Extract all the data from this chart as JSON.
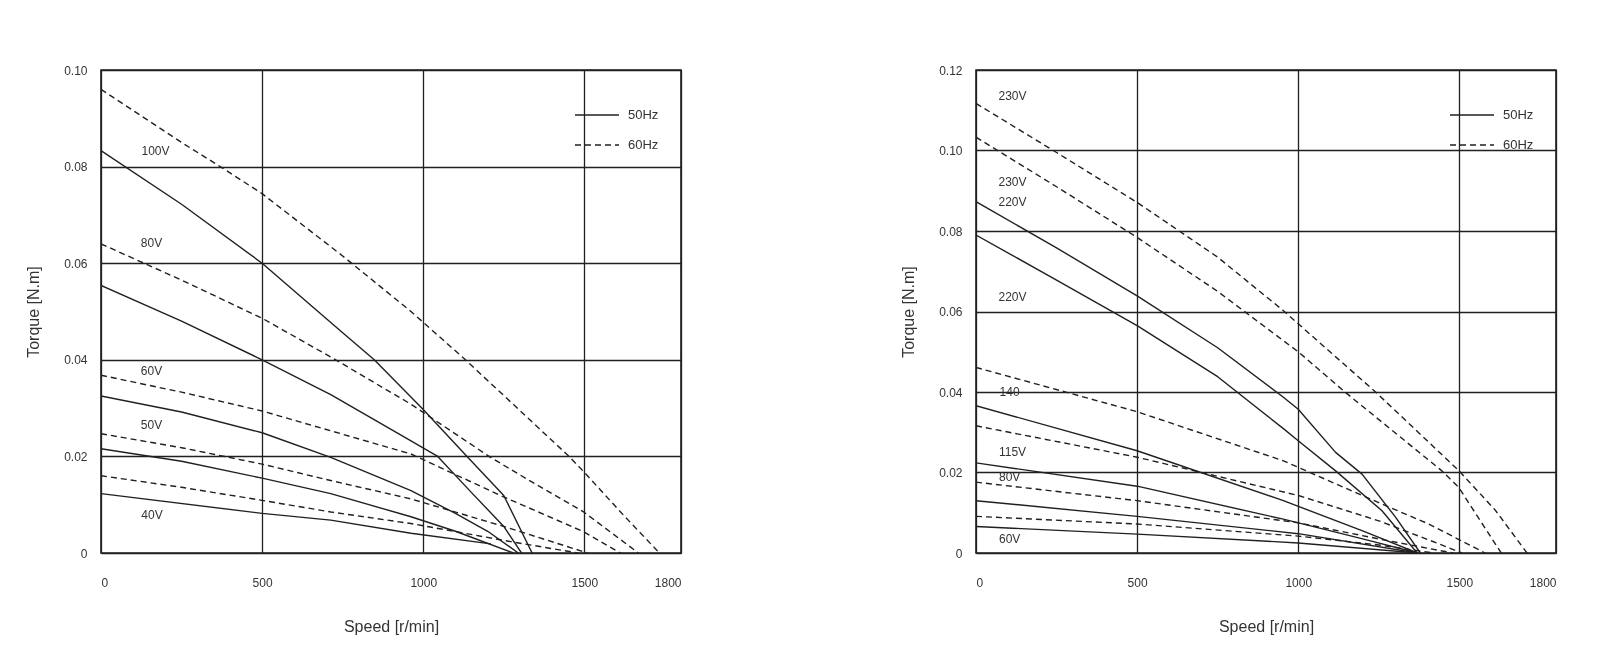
{
  "chart_data": [
    {
      "type": "line",
      "xlabel": "Speed [r/min]",
      "ylabel": "Torque [N.m]",
      "xlim": [
        0,
        1800
      ],
      "xticks": [
        0,
        500,
        1000,
        1500,
        1800
      ],
      "ylim": [
        0,
        0.1
      ],
      "yticks": [
        0,
        0.02,
        0.04,
        0.06,
        0.08,
        {
          "value": 0.1,
          "label": "0.10"
        }
      ],
      "grid": true,
      "legend": "top right",
      "series": [
        {
          "name": "50Hz",
          "color": "#231f20",
          "line_style": "solid",
          "x": [
            0,
            250,
            500,
            750,
            848,
            1000,
            1136,
            1250,
            1338
          ],
          "values": [
            0.0833,
            0.0722,
            0.06,
            0.0456,
            0.04,
            0.0297,
            0.02,
            0.0119,
            0
          ]
        },
        {
          "color": "#231f20",
          "line_style": "solid",
          "x": [
            0,
            250,
            500,
            713,
            962,
            1045,
            1150,
            1250,
            1305
          ],
          "values": [
            0.0554,
            0.048,
            0.04,
            0.0328,
            0.0232,
            0.02,
            0.0125,
            0.0055,
            0
          ]
        },
        {
          "color": "#231f20",
          "line_style": "solid",
          "x": [
            0,
            250,
            500,
            713,
            962,
            1100,
            1200,
            1295
          ],
          "values": [
            0.0325,
            0.0292,
            0.0249,
            0.0198,
            0.0129,
            0.0082,
            0.0045,
            0
          ]
        },
        {
          "color": "#231f20",
          "line_style": "solid",
          "x": [
            0,
            250,
            500,
            713,
            962,
            1100,
            1280
          ],
          "values": [
            0.0216,
            0.019,
            0.0155,
            0.0123,
            0.0075,
            0.0045,
            0
          ]
        },
        {
          "color": "#231f20",
          "line_style": "solid",
          "x": [
            0,
            500,
            713,
            962,
            1210
          ],
          "values": [
            0.0123,
            0.0082,
            0.0068,
            0.0041,
            0.0019
          ]
        },
        {
          "name": "60Hz",
          "color": "#231f20",
          "line_style": "dashed",
          "x": [
            0,
            250,
            370,
            500,
            750,
            962,
            1126,
            1300,
            1451,
            1500,
            1622,
            1733
          ],
          "values": [
            0.096,
            0.085,
            0.08,
            0.0744,
            0.0615,
            0.05,
            0.0403,
            0.0295,
            0.0201,
            0.0167,
            0.0078,
            0
          ]
        },
        {
          "color": "#231f20",
          "line_style": "dashed",
          "x": [
            0,
            250,
            500,
            723,
            962,
            1209,
            1350,
            1498,
            1668
          ],
          "values": [
            0.064,
            0.0565,
            0.0486,
            0.0402,
            0.0308,
            0.0198,
            0.0142,
            0.0085,
            0
          ]
        },
        {
          "color": "#231f20",
          "line_style": "dashed",
          "x": [
            0,
            250,
            500,
            713,
            962,
            1240,
            1498,
            1612
          ],
          "values": [
            0.0368,
            0.0333,
            0.0294,
            0.0253,
            0.0205,
            0.0119,
            0.0044,
            0
          ]
        },
        {
          "color": "#231f20",
          "line_style": "dashed",
          "x": [
            0,
            250,
            500,
            713,
            962,
            1250,
            1510
          ],
          "values": [
            0.0247,
            0.0218,
            0.0184,
            0.015,
            0.0112,
            0.0055,
            0
          ]
        },
        {
          "color": "#231f20",
          "line_style": "dashed",
          "x": [
            0,
            250,
            500,
            713,
            962,
            1276,
            1480
          ],
          "values": [
            0.016,
            0.0136,
            0.0109,
            0.0085,
            0.0061,
            0.0023,
            0
          ]
        }
      ],
      "annotations": [
        "100V",
        "80V",
        "60V",
        "50V",
        "40V"
      ]
    },
    {
      "type": "line",
      "xlabel": "Speed [r/min]",
      "ylabel": "Torque [N.m]",
      "xlim": [
        0,
        1800
      ],
      "xticks": [
        0,
        500,
        1000,
        1500,
        1800
      ],
      "ylim": [
        0,
        0.12
      ],
      "yticks": [
        0,
        0.02,
        0.04,
        0.06,
        0.08,
        {
          "value": 0.1,
          "label": "0.10"
        },
        0.12
      ],
      "grid": true,
      "legend": "top right",
      "series": [
        {
          "name": "50Hz",
          "color": "#231f20",
          "line_style": "solid",
          "x": [
            0,
            250,
            500,
            750,
            954,
            1000,
            1116,
            1198,
            1302,
            1379
          ],
          "values": [
            0.0873,
            0.0758,
            0.0639,
            0.051,
            0.0387,
            0.0357,
            0.025,
            0.0196,
            0.0089,
            0
          ]
        },
        {
          "color": "#231f20",
          "line_style": "solid",
          "x": [
            0,
            250,
            500,
            750,
            954,
            1000,
            1116,
            1260,
            1369
          ],
          "values": [
            0.079,
            0.0678,
            0.0565,
            0.0438,
            0.0309,
            0.0279,
            0.0204,
            0.0105,
            0
          ]
        },
        {
          "color": "#231f20",
          "line_style": "solid",
          "x": [
            0,
            500,
            954,
            1200,
            1370
          ],
          "values": [
            0.0366,
            0.0254,
            0.013,
            0.0055,
            0
          ]
        },
        {
          "color": "#231f20",
          "line_style": "solid",
          "x": [
            0,
            500,
            954,
            1200,
            1370
          ],
          "values": [
            0.0224,
            0.0166,
            0.0084,
            0.0035,
            0
          ]
        },
        {
          "color": "#231f20",
          "line_style": "solid",
          "x": [
            0,
            500,
            1000,
            1370
          ],
          "values": [
            0.013,
            0.0091,
            0.0048,
            0
          ]
        },
        {
          "color": "#231f20",
          "line_style": "solid",
          "x": [
            0,
            500,
            1000,
            1370
          ],
          "values": [
            0.0066,
            0.0047,
            0.0025,
            0
          ]
        },
        {
          "name": "60Hz",
          "color": "#231f20",
          "line_style": "dashed",
          "x": [
            0,
            250,
            500,
            750,
            954,
            1240,
            1498,
            1612,
            1710
          ],
          "values": [
            0.1117,
            0.0995,
            0.0871,
            0.0735,
            0.0602,
            0.04,
            0.0205,
            0.0106,
            0
          ]
        },
        {
          "color": "#231f20",
          "line_style": "dashed",
          "x": [
            0,
            250,
            500,
            750,
            1000,
            1145,
            1446,
            1498,
            1630
          ],
          "values": [
            0.1033,
            0.091,
            0.0784,
            0.065,
            0.05,
            0.04,
            0.0204,
            0.0163,
            0
          ]
        },
        {
          "color": "#231f20",
          "line_style": "dashed",
          "x": [
            0,
            500,
            954,
            1250,
            1405,
            1580
          ],
          "values": [
            0.0461,
            0.0351,
            0.0229,
            0.0125,
            0.0072,
            0
          ]
        },
        {
          "color": "#231f20",
          "line_style": "dashed",
          "x": [
            0,
            500,
            1000,
            1250,
            1436,
            1508
          ],
          "values": [
            0.0316,
            0.0238,
            0.0143,
            0.008,
            0.0023,
            0
          ]
        },
        {
          "color": "#231f20",
          "line_style": "dashed",
          "x": [
            0,
            500,
            1000,
            1250,
            1480
          ],
          "values": [
            0.0176,
            0.013,
            0.0075,
            0.0035,
            0
          ]
        },
        {
          "color": "#231f20",
          "line_style": "dashed",
          "x": [
            0,
            500,
            1000,
            1250,
            1420
          ],
          "values": [
            0.0091,
            0.0072,
            0.0042,
            0.002,
            0
          ]
        }
      ],
      "annotations": [
        "230V",
        "230V",
        "220V",
        "220V",
        "140",
        "115V",
        "80V",
        "60V"
      ]
    }
  ]
}
